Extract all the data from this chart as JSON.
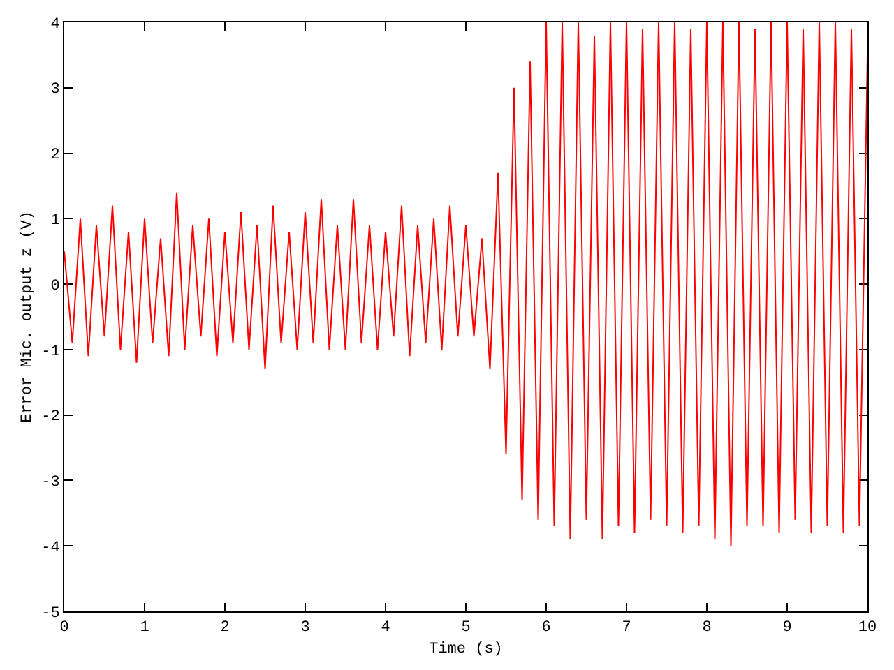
{
  "chart_data": {
    "type": "line",
    "xlabel": "Time (s)",
    "ylabel": "Error Mic. output z (V)",
    "x": [
      0,
      0.1,
      0.2,
      0.3,
      0.4,
      0.5,
      0.6,
      0.7,
      0.8,
      0.9,
      1,
      1.1,
      1.2,
      1.3,
      1.4,
      1.5,
      1.6,
      1.7,
      1.8,
      1.9,
      2,
      2.1,
      2.2,
      2.3,
      2.4,
      2.5,
      2.6,
      2.7,
      2.8,
      2.9,
      3,
      3.1,
      3.2,
      3.3,
      3.4,
      3.5,
      3.6,
      3.7,
      3.8,
      3.9,
      4,
      4.1,
      4.2,
      4.3,
      4.4,
      4.5,
      4.6,
      4.7,
      4.8,
      4.9,
      5,
      5.1,
      5.2,
      5.3,
      5.4,
      5.5,
      5.6,
      5.7,
      5.8,
      5.9,
      6,
      6.1,
      6.2,
      6.3,
      6.4,
      6.5,
      6.6,
      6.7,
      6.8,
      6.9,
      7,
      7.1,
      7.2,
      7.3,
      7.4,
      7.5,
      7.6,
      7.7,
      7.8,
      7.9,
      8,
      8.1,
      8.2,
      8.3,
      8.4,
      8.5,
      8.6,
      8.7,
      8.8,
      8.9,
      9,
      9.1,
      9.2,
      9.3,
      9.4,
      9.5,
      9.6,
      9.7,
      9.8,
      9.9,
      10
    ],
    "series": [
      {
        "color": "#ff0000",
        "values": [
          0.5,
          -0.9,
          1.0,
          -1.1,
          0.9,
          -0.8,
          1.2,
          -1.0,
          0.8,
          -1.2,
          1.0,
          -0.9,
          0.7,
          -1.1,
          1.4,
          -1.0,
          0.9,
          -0.8,
          1.0,
          -1.1,
          0.8,
          -0.9,
          1.1,
          -1.0,
          0.9,
          -1.3,
          1.2,
          -0.9,
          0.8,
          -1.0,
          1.1,
          -0.9,
          1.3,
          -1.0,
          0.9,
          -1.0,
          1.3,
          -0.9,
          0.9,
          -1.0,
          0.8,
          -0.8,
          1.2,
          -1.1,
          0.9,
          -0.9,
          1.0,
          -1.0,
          1.2,
          -0.8,
          0.9,
          -0.8,
          0.7,
          -1.3,
          1.7,
          -2.6,
          3.0,
          -3.3,
          3.4,
          -3.6,
          4,
          -3.7,
          4,
          -3.9,
          4,
          -3.6,
          3.8,
          -3.9,
          4,
          -3.7,
          4,
          -3.8,
          3.9,
          -3.6,
          4,
          -3.7,
          4,
          -3.8,
          3.9,
          -3.7,
          4,
          -3.9,
          4,
          -4.0,
          4,
          -3.7,
          3.9,
          -3.7,
          4,
          -3.8,
          4,
          -3.6,
          3.9,
          -3.8,
          4,
          -3.7,
          4,
          -3.8,
          3.9,
          -3.7,
          3.5
        ]
      }
    ],
    "xlim": [
      0,
      10
    ],
    "xticks": [
      0,
      1,
      2,
      3,
      4,
      5,
      6,
      7,
      8,
      9,
      10
    ],
    "ylim": [
      -5,
      4
    ],
    "yticks": [
      -5,
      -4,
      -3,
      -2,
      -1,
      0,
      1,
      2,
      3,
      4
    ],
    "grid": false,
    "marker": "none",
    "line_style": "solid"
  }
}
